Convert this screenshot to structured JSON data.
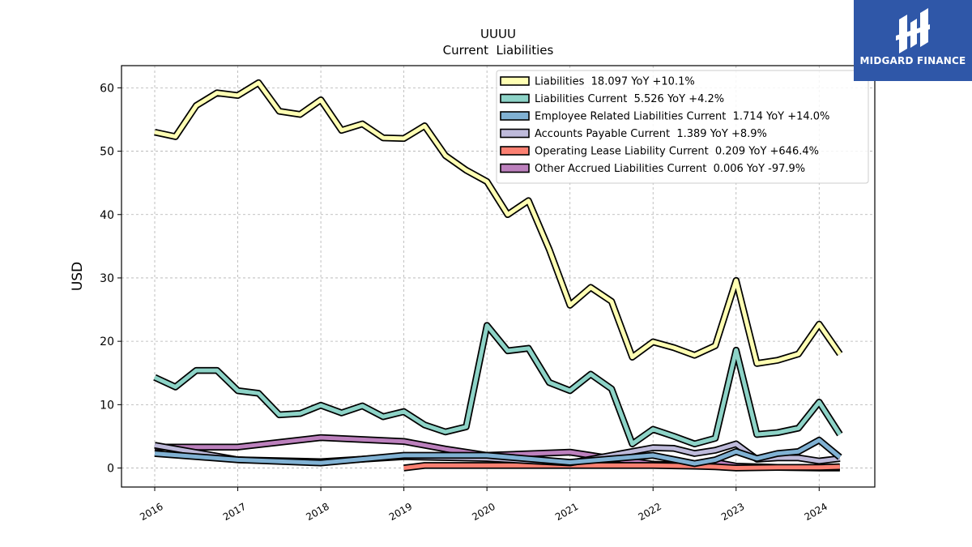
{
  "brand": {
    "name": "MIDGARD FINANCE",
    "color": "#2f57a8",
    "icon": "midgard-logo-icon"
  },
  "chart_data": {
    "type": "line",
    "title": "UUUU",
    "subtitle": "Current  Liabilities",
    "ylabel": "USD",
    "xlabel": "",
    "ylim": [
      -3,
      63.5
    ],
    "xlim": [
      2015.6,
      2024.67
    ],
    "yticks": [
      0,
      10,
      20,
      30,
      40,
      50,
      60
    ],
    "xticks": [
      "2016",
      "2017",
      "2018",
      "2019",
      "2020",
      "2021",
      "2022",
      "2023",
      "2024"
    ],
    "grid": true,
    "legend_position": "top-right",
    "series": [
      {
        "name": "Liabilities",
        "legend": "Liabilities  18.097 YoY +10.1%",
        "color": "#ffffb3",
        "x": [
          2016.0,
          2016.25,
          2016.5,
          2016.75,
          2017.0,
          2017.25,
          2017.5,
          2017.75,
          2018.0,
          2018.25,
          2018.5,
          2018.75,
          2019.0,
          2019.25,
          2019.5,
          2019.75,
          2020.0,
          2020.25,
          2020.5,
          2020.75,
          2021.0,
          2021.25,
          2021.5,
          2021.75,
          2022.0,
          2022.25,
          2022.5,
          2022.75,
          2023.0,
          2023.25,
          2023.5,
          2023.75,
          2024.0,
          2024.25
        ],
        "values": [
          53.0,
          52.3,
          57.2,
          59.2,
          58.8,
          60.8,
          56.3,
          55.8,
          58.1,
          53.3,
          54.3,
          52.1,
          52.0,
          54.0,
          49.3,
          47.0,
          45.2,
          40.0,
          42.2,
          34.5,
          25.7,
          28.5,
          26.3,
          17.5,
          19.9,
          19.0,
          17.8,
          19.3,
          29.6,
          16.5,
          17.0,
          18.0,
          22.7,
          18.0
        ]
      },
      {
        "name": "Liabilities Current",
        "legend": "Liabilities Current  5.526 YoY +4.2%",
        "color": "#8dd3c7",
        "x": [
          2016.0,
          2016.25,
          2016.5,
          2016.75,
          2017.0,
          2017.25,
          2017.5,
          2017.75,
          2018.0,
          2018.25,
          2018.5,
          2018.75,
          2019.0,
          2019.25,
          2019.5,
          2019.75,
          2020.0,
          2020.25,
          2020.5,
          2020.75,
          2021.0,
          2021.25,
          2021.5,
          2021.75,
          2022.0,
          2022.25,
          2022.5,
          2022.75,
          2023.0,
          2023.25,
          2023.5,
          2023.75,
          2024.0,
          2024.25
        ],
        "values": [
          14.3,
          12.8,
          15.4,
          15.4,
          12.2,
          11.8,
          8.4,
          8.6,
          9.9,
          8.7,
          9.8,
          8.1,
          8.9,
          6.8,
          5.7,
          6.5,
          22.5,
          18.5,
          18.9,
          13.5,
          12.2,
          14.8,
          12.5,
          3.8,
          6.1,
          5.0,
          3.8,
          4.7,
          18.6,
          5.3,
          5.6,
          6.3,
          10.4,
          5.3
        ]
      },
      {
        "name": "Employee Related Liabilities Current",
        "legend": "Employee Related Liabilities Current  1.714 YoY +14.0%",
        "color": "#80b1d3",
        "x": [
          2016.0,
          2017.0,
          2018.0,
          2019.0,
          2020.0,
          2021.0,
          2022.0,
          2022.5,
          2022.75,
          2023.0,
          2023.25,
          2023.5,
          2023.75,
          2024.0,
          2024.25
        ],
        "values": [
          2.3,
          1.3,
          0.8,
          2.0,
          2.0,
          0.9,
          2.0,
          0.7,
          1.3,
          2.6,
          1.5,
          2.3,
          2.6,
          4.4,
          1.7
        ]
      },
      {
        "name": "Accounts Payable Current",
        "legend": "Accounts Payable Current  1.389 YoY +8.9%",
        "color": "#bebada",
        "x": [
          2016.0,
          2017.0,
          2018.0,
          2019.0,
          2020.0,
          2021.0,
          2021.5,
          2022.0,
          2022.25,
          2022.5,
          2022.75,
          2023.0,
          2023.25,
          2023.5,
          2023.75,
          2024.0,
          2024.25
        ],
        "values": [
          3.6,
          1.3,
          1.0,
          1.8,
          1.5,
          0.8,
          2.0,
          3.2,
          3.1,
          2.3,
          2.8,
          3.8,
          1.4,
          1.6,
          1.6,
          1.1,
          1.5
        ]
      },
      {
        "name": "Operating Lease Liability Current",
        "legend": "Operating Lease Liability Current  0.209 YoY +646.4%",
        "color": "#fb8072",
        "x": [
          2019.0,
          2019.25,
          2020.0,
          2021.0,
          2022.0,
          2022.5,
          2022.75,
          2023.0,
          2023.5,
          2024.0,
          2024.25
        ],
        "values": [
          0.0,
          0.4,
          0.4,
          0.4,
          0.4,
          0.3,
          0.2,
          0.0,
          0.1,
          0.1,
          0.2
        ]
      },
      {
        "name": "Other Accrued Liabilities Current",
        "legend": "Other Accrued Liabilities Current  0.006 YoY -97.9%",
        "color": "#bc80bd",
        "x": [
          2016.0,
          2016.5,
          2017.0,
          2018.0,
          2019.0,
          2019.5,
          2020.0,
          2021.0,
          2021.5,
          2022.0,
          2022.5,
          2022.75,
          2023.0,
          2023.5,
          2024.0,
          2024.25
        ],
        "values": [
          3.3,
          3.3,
          3.3,
          4.8,
          4.2,
          3.0,
          2.0,
          2.5,
          1.5,
          0.6,
          0.4,
          0.9,
          0.3,
          0.1,
          0.0,
          0.0
        ]
      }
    ]
  }
}
